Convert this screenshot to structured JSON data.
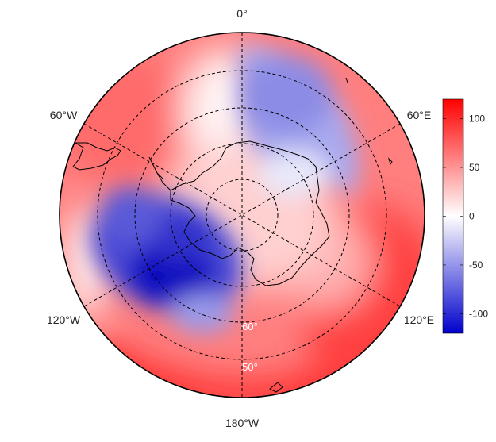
{
  "map": {
    "projection": "south polar stereographic",
    "longitude_labels": {
      "top": "0°",
      "upper_left": "60°W",
      "upper_right": "60°E",
      "lower_left": "120°W",
      "lower_right": "120°E",
      "bottom": "180°W"
    },
    "latitude_labels": [
      "60°",
      "50°"
    ],
    "colors": {
      "positive": "#ff0000",
      "neutral": "#ffffff",
      "negative": "#0000cc",
      "coastline": "#000000",
      "grid": "#000000"
    }
  },
  "colorbar": {
    "min": -120,
    "max": 120,
    "ticks": [
      "100",
      "50",
      "0",
      "-50",
      "-100"
    ],
    "tick_values": [
      100,
      50,
      0,
      -50,
      -100
    ]
  }
}
